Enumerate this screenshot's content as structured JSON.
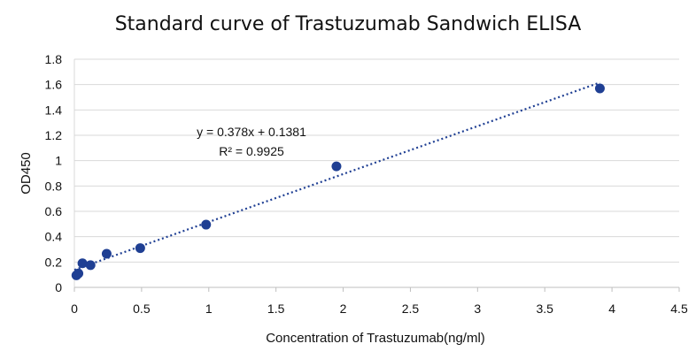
{
  "chart_data": {
    "type": "scatter",
    "title": "Standard curve of Trastuzumab Sandwich ELISA",
    "xlabel": "Concentration of Trastuzumab(ng/ml)",
    "ylabel": "OD450",
    "xlim": [
      0,
      4.5
    ],
    "ylim": [
      0,
      1.8
    ],
    "xticks": [
      "0",
      "0.5",
      "1",
      "1.5",
      "2",
      "2.5",
      "3",
      "3.5",
      "4",
      "4.5"
    ],
    "yticks": [
      "0",
      "0.2",
      "0.4",
      "0.6",
      "0.8",
      "1",
      "1.2",
      "1.4",
      "1.6",
      "1.8"
    ],
    "grid": "y-major",
    "marker_color": "#1f3f93",
    "trendline_color": "#1f3f93",
    "points": [
      {
        "x": 0.015,
        "y": 0.095
      },
      {
        "x": 0.03,
        "y": 0.11
      },
      {
        "x": 0.06,
        "y": 0.19
      },
      {
        "x": 0.12,
        "y": 0.175
      },
      {
        "x": 0.24,
        "y": 0.265
      },
      {
        "x": 0.49,
        "y": 0.31
      },
      {
        "x": 0.98,
        "y": 0.495
      },
      {
        "x": 1.95,
        "y": 0.955
      },
      {
        "x": 3.91,
        "y": 1.57
      }
    ],
    "trendline": {
      "type": "linear",
      "slope": 0.378,
      "intercept": 0.1381,
      "x_range": [
        0,
        3.91
      ]
    },
    "equation_text": "y = 0.378x + 0.1381",
    "r2_text": "R² = 0.9925"
  }
}
